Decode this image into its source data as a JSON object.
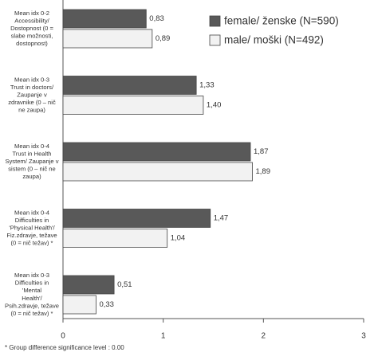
{
  "chart_data": {
    "type": "bar",
    "orientation": "horizontal",
    "categories": [
      "Mean idx 0-2\nAccessibility/\nDostopnost (0 =\nslabe možnosti,\ndostopnost)",
      "Mean idx 0-3\nTrust in doctors/\nZaupanje v\nzdravnike (0 – nič\nne zaupa)",
      "Mean idx 0-4\nTrust in Health\nSystem/ Zaupanje v\nsistem (0 – nič ne\nzaupa)",
      "Mean idx 0-4\nDifficulties in\n'Physical Health'/\nFiz.zdravje, težave\n(0 = nič težav) *",
      "Mean idx 0-3\nDifficulties in\n'Mental\nHealth'/\nPsih.zdravje, težave\n(0 = nič težav) *"
    ],
    "series": [
      {
        "name": "female/ ženske (N=590)",
        "color": "#595959",
        "values": [
          0.83,
          1.33,
          1.87,
          1.47,
          0.51
        ],
        "value_labels": [
          "0,83",
          "1,33",
          "1,87",
          "1,47",
          "0,51"
        ]
      },
      {
        "name": "male/ moški (N=492)",
        "color": "#f2f2f2",
        "values": [
          0.89,
          1.4,
          1.89,
          1.04,
          0.33
        ],
        "value_labels": [
          "0,89",
          "1,40",
          "1,89",
          "1,04",
          "0,33"
        ]
      }
    ],
    "xlim": [
      0,
      3
    ],
    "xticks": [
      0,
      1,
      2,
      3
    ],
    "legend": "top-right",
    "footnote": "* Group difference significance level : 0.00"
  }
}
